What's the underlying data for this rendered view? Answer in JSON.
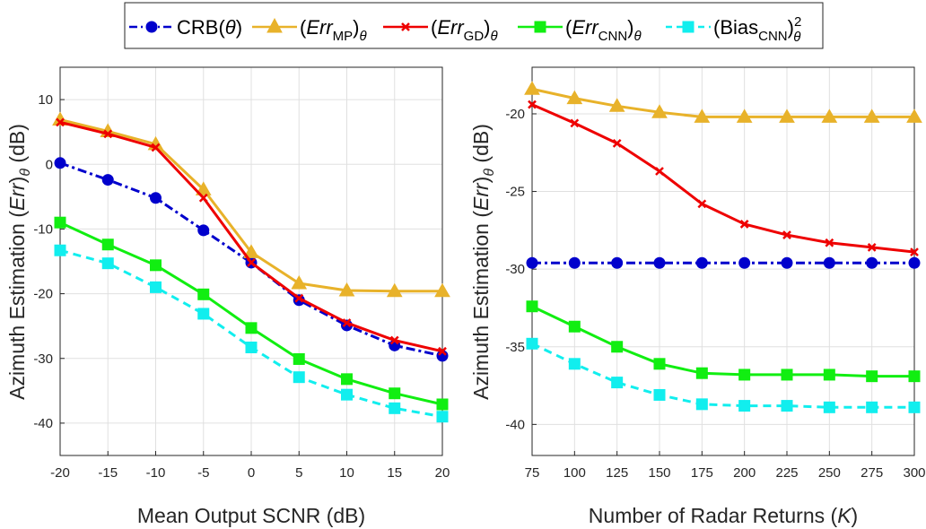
{
  "legend": {
    "crb": {
      "main": "CRB(",
      "theta": "θ",
      "close": ")"
    },
    "mp": {
      "open": "(",
      "err": "Err",
      "sub": "MP",
      "close": ")",
      "theta": "θ"
    },
    "gd": {
      "open": "(",
      "err": "Err",
      "sub": "GD",
      "close": ")",
      "theta": "θ"
    },
    "cnn": {
      "open": "(",
      "err": "Err",
      "sub": "CNN",
      "close": ")",
      "theta": "θ"
    },
    "bias": {
      "open": "(Bias",
      "sub": "CNN",
      "close": ")",
      "sup": "2",
      "theta": "θ"
    }
  },
  "colors": {
    "crb": "#0000cc",
    "mp": "#e8b22a",
    "gd": "#ee0000",
    "cnn": "#11ee11",
    "bias": "#11eeee",
    "grid": "#e0e0e0",
    "axis": "#262626"
  },
  "chart_data": [
    {
      "type": "line",
      "xlabel": "Mean Output SCNR (dB)",
      "ylabel": {
        "prefix": "Azimuth Estimation (",
        "err": "Err",
        "close": ")",
        "theta": "θ",
        "unit": " (dB)"
      },
      "x": [
        -20,
        -15,
        -10,
        -5,
        0,
        5,
        10,
        15,
        20
      ],
      "x_ticks": [
        "-20",
        "-15",
        "-10",
        "-5",
        "0",
        "5",
        "10",
        "15",
        "20"
      ],
      "xlim": [
        -20,
        20
      ],
      "ylim": [
        -45,
        15
      ],
      "y_ticks": [
        -40,
        -30,
        -20,
        -10,
        0,
        10
      ],
      "y_tick_labels": [
        "-40",
        "-30",
        "-20",
        "-10",
        "0",
        "10"
      ],
      "grid": true,
      "series": [
        {
          "name": "CRB(θ)",
          "key": "crb",
          "marker": "circle",
          "dash": "dashdot",
          "values": [
            0.2,
            -2.4,
            -5.2,
            -10.2,
            -15.2,
            -21.0,
            -24.9,
            -28.0,
            -29.6
          ]
        },
        {
          "name": "(Err_MP)_θ",
          "key": "mp",
          "marker": "triangle",
          "dash": "solid",
          "values": [
            6.9,
            5.1,
            3.1,
            -3.9,
            -13.6,
            -18.4,
            -19.5,
            -19.6,
            -19.6
          ]
        },
        {
          "name": "(Err_GD)_θ",
          "key": "gd",
          "marker": "x",
          "dash": "solid",
          "values": [
            6.5,
            4.7,
            2.6,
            -5.2,
            -15.2,
            -20.7,
            -24.5,
            -27.2,
            -28.9
          ]
        },
        {
          "name": "(Err_CNN)_θ",
          "key": "cnn",
          "marker": "square",
          "dash": "solid",
          "values": [
            -9.0,
            -12.4,
            -15.6,
            -20.1,
            -25.3,
            -30.1,
            -33.2,
            -35.4,
            -37.1
          ]
        },
        {
          "name": "(Bias_CNN)^2_θ",
          "key": "bias",
          "marker": "square",
          "dash": "dashed",
          "values": [
            -13.3,
            -15.3,
            -19.0,
            -23.1,
            -28.3,
            -32.9,
            -35.6,
            -37.7,
            -39.0
          ]
        }
      ]
    },
    {
      "type": "line",
      "xlabel": {
        "prefix": "Number of Radar Returns (",
        "k": "K",
        "close": ")"
      },
      "ylabel": {
        "prefix": "Azimuth Estimation (",
        "err": "Err",
        "close": ")",
        "theta": "θ",
        "unit": " (dB)"
      },
      "x": [
        75,
        100,
        125,
        150,
        175,
        200,
        225,
        250,
        275,
        300
      ],
      "x_ticks": [
        "75",
        "100",
        "125",
        "150",
        "175",
        "200",
        "225",
        "250",
        "275",
        "300"
      ],
      "xlim": [
        75,
        300
      ],
      "ylim": [
        -42,
        -17
      ],
      "y_ticks": [
        -40,
        -35,
        -30,
        -25,
        -20
      ],
      "y_tick_labels": [
        "-40",
        "-35",
        "-30",
        "-25",
        "-20"
      ],
      "grid": true,
      "series": [
        {
          "name": "CRB(θ)",
          "key": "crb",
          "marker": "circle",
          "dash": "dashdot",
          "values": [
            -29.6,
            -29.6,
            -29.6,
            -29.6,
            -29.6,
            -29.6,
            -29.6,
            -29.6,
            -29.6,
            -29.6
          ]
        },
        {
          "name": "(Err_MP)_θ",
          "key": "mp",
          "marker": "triangle",
          "dash": "solid",
          "values": [
            -18.4,
            -19.0,
            -19.5,
            -19.9,
            -20.2,
            -20.2,
            -20.2,
            -20.2,
            -20.2,
            -20.2
          ]
        },
        {
          "name": "(Err_GD)_θ",
          "key": "gd",
          "marker": "x",
          "dash": "solid",
          "values": [
            -19.4,
            -20.6,
            -21.9,
            -23.7,
            -25.8,
            -27.1,
            -27.8,
            -28.3,
            -28.6,
            -28.9
          ]
        },
        {
          "name": "(Err_CNN)_θ",
          "key": "cnn",
          "marker": "square",
          "dash": "solid",
          "values": [
            -32.4,
            -33.7,
            -35.0,
            -36.1,
            -36.7,
            -36.8,
            -36.8,
            -36.8,
            -36.9,
            -36.9
          ]
        },
        {
          "name": "(Bias_CNN)^2_θ",
          "key": "bias",
          "marker": "square",
          "dash": "dashed",
          "values": [
            -34.8,
            -36.1,
            -37.3,
            -38.1,
            -38.7,
            -38.8,
            -38.8,
            -38.9,
            -38.9,
            -38.9
          ]
        }
      ]
    }
  ]
}
